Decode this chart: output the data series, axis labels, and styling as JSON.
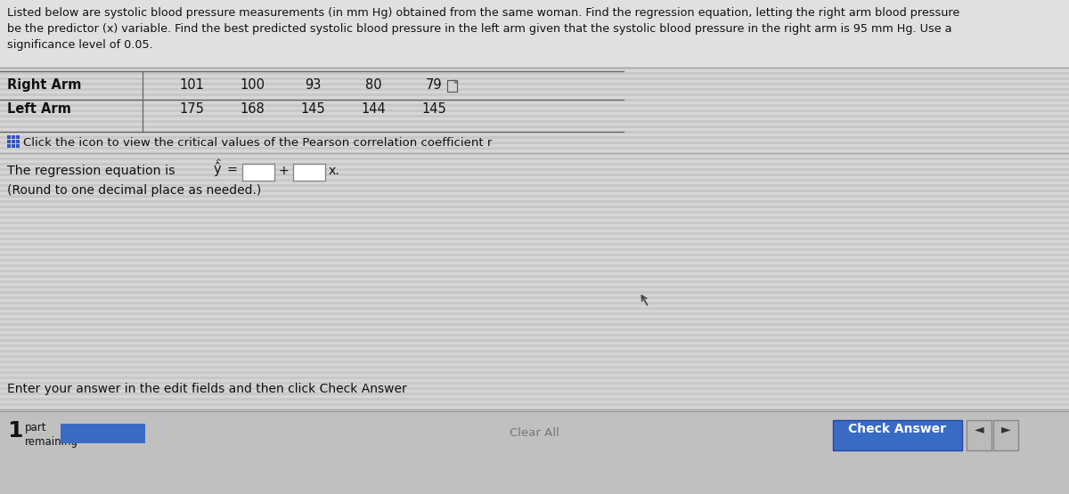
{
  "title_text_lines": [
    "Listed below are systolic blood pressure measurements (in mm Hg) obtained from the same woman. Find the regression equation, letting the right arm blood pressure",
    "be the predictor (x) variable. Find the best predicted systolic blood pressure in the left arm given that the systolic blood pressure in the right arm is 95 mm Hg. Use a",
    "significance level of 0.05."
  ],
  "right_arm_label": "Right Arm",
  "left_arm_label": "Left Arm",
  "right_arm_values": [
    "101",
    "100",
    "93",
    "80",
    "79"
  ],
  "left_arm_values": [
    "175",
    "168",
    "145",
    "144",
    "145"
  ],
  "icon_text": "Click the icon to view the critical values of the Pearson correlation coefficient r",
  "regression_prefix": "The regression equation is ",
  "regression_suffix": "x.",
  "regression_note": "(Round to one decimal place as needed.)",
  "enter_answer_text": "Enter your answer in the edit fields and then click Check Answer",
  "clear_all_text": "Clear All",
  "check_answer_text": "Check Answer",
  "bg_stripe_light": "#d6d6d6",
  "bg_stripe_dark": "#c8c8c8",
  "table_line_color": "#666666",
  "button_blue": "#3a6bc4",
  "check_answer_bg": "#3a6bc4",
  "input_box_color": "#ffffff",
  "input_box_border": "#888888",
  "bottom_bar_bg": "#c0c0c0",
  "text_color": "#111111",
  "icon_blue": "#3355bb"
}
